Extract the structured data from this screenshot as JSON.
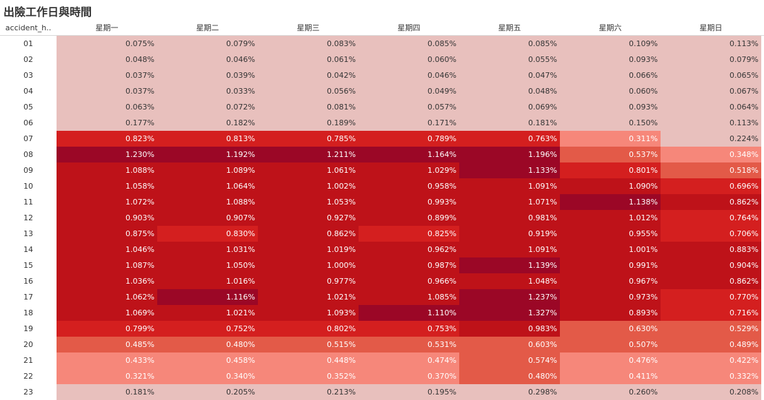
{
  "title": "出險工作日與時間",
  "chart_data": {
    "type": "heatmap",
    "row_header_label": "accident_h..",
    "columns": [
      "星期一",
      "星期二",
      "星期三",
      "星期四",
      "星期五",
      "星期六",
      "星期日"
    ],
    "rows": [
      "01",
      "02",
      "03",
      "04",
      "05",
      "06",
      "07",
      "08",
      "09",
      "10",
      "11",
      "12",
      "13",
      "14",
      "15",
      "16",
      "17",
      "18",
      "19",
      "20",
      "21",
      "22",
      "23"
    ],
    "values": [
      [
        0.075,
        0.079,
        0.083,
        0.085,
        0.085,
        0.109,
        0.113
      ],
      [
        0.048,
        0.046,
        0.061,
        0.06,
        0.055,
        0.093,
        0.079
      ],
      [
        0.037,
        0.039,
        0.042,
        0.046,
        0.047,
        0.066,
        0.065
      ],
      [
        0.037,
        0.033,
        0.056,
        0.049,
        0.048,
        0.06,
        0.067
      ],
      [
        0.063,
        0.072,
        0.081,
        0.057,
        0.069,
        0.093,
        0.064
      ],
      [
        0.177,
        0.182,
        0.189,
        0.171,
        0.181,
        0.15,
        0.113
      ],
      [
        0.823,
        0.813,
        0.785,
        0.789,
        0.763,
        0.311,
        0.224
      ],
      [
        1.23,
        1.192,
        1.211,
        1.164,
        1.196,
        0.537,
        0.348
      ],
      [
        1.088,
        1.089,
        1.061,
        1.029,
        1.133,
        0.801,
        0.518
      ],
      [
        1.058,
        1.064,
        1.002,
        0.958,
        1.091,
        1.09,
        0.696
      ],
      [
        1.072,
        1.088,
        1.053,
        0.993,
        1.071,
        1.138,
        0.862
      ],
      [
        0.903,
        0.907,
        0.927,
        0.899,
        0.981,
        1.012,
        0.764
      ],
      [
        0.875,
        0.83,
        0.862,
        0.825,
        0.919,
        0.955,
        0.706
      ],
      [
        1.046,
        1.031,
        1.019,
        0.962,
        1.091,
        1.001,
        0.883
      ],
      [
        1.087,
        1.05,
        1.0,
        0.987,
        1.139,
        0.991,
        0.904
      ],
      [
        1.036,
        1.016,
        0.977,
        0.966,
        1.048,
        0.967,
        0.862
      ],
      [
        1.062,
        1.116,
        1.021,
        1.085,
        1.237,
        0.973,
        0.77
      ],
      [
        1.069,
        1.021,
        1.093,
        1.11,
        1.327,
        0.893,
        0.716
      ],
      [
        0.799,
        0.752,
        0.802,
        0.753,
        0.983,
        0.63,
        0.529
      ],
      [
        0.485,
        0.48,
        0.515,
        0.531,
        0.603,
        0.507,
        0.489
      ],
      [
        0.433,
        0.458,
        0.448,
        0.474,
        0.574,
        0.476,
        0.422
      ],
      [
        0.321,
        0.34,
        0.352,
        0.37,
        0.48,
        0.411,
        0.332
      ],
      [
        0.181,
        0.205,
        0.213,
        0.195,
        0.298,
        0.26,
        0.208
      ]
    ],
    "value_format": "percent",
    "colors": {
      "light": "#e8c0bd",
      "salmon": "#f6877a",
      "orange_red": "#e35a48",
      "red": "#d41f1f",
      "dark_red": "#be1219",
      "maroon": "#9b0726",
      "text_light": "#ffffff",
      "text_dark": "#333333"
    }
  }
}
